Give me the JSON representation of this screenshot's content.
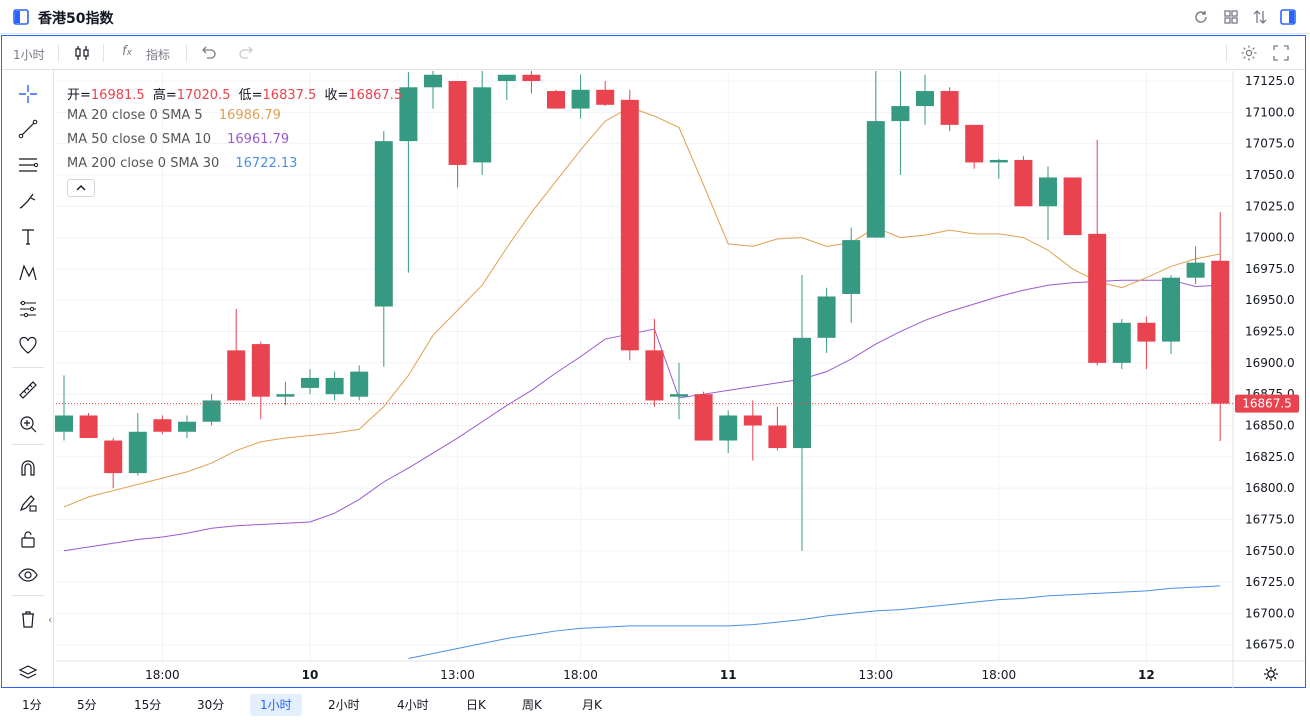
{
  "app": {
    "title": "香港50指数"
  },
  "toolbar": {
    "interval_label": "1小时",
    "indicators_label": "指标"
  },
  "legend": {
    "ohlc": [
      {
        "label": "开=",
        "value": "16981.5"
      },
      {
        "label": "高=",
        "value": "17020.5"
      },
      {
        "label": "低=",
        "value": "16837.5"
      },
      {
        "label": "收=",
        "value": "16867.5"
      }
    ],
    "ma": [
      {
        "label": "MA 20 close 0 SMA 5",
        "value": "16986.79",
        "color": "#e0a050"
      },
      {
        "label": "MA 50 close 0 SMA 10",
        "value": "16961.79",
        "color": "#9b59d0"
      },
      {
        "label": "MA 200 close 0 SMA 30",
        "value": "16722.13",
        "color": "#4a90e2"
      }
    ],
    "ohlc_value_color": "#e8434f"
  },
  "price_label": "16867.5",
  "timeframes": [
    "1分",
    "5分",
    "15分",
    "30分",
    "1小时",
    "2小时",
    "4小时",
    "日K",
    "周K",
    "月K"
  ],
  "active_timeframe": "1小时",
  "colors": {
    "up": "#369a82",
    "down": "#e8434f",
    "accent": "#2962ff"
  },
  "chart_data": {
    "type": "candlestick",
    "y_ticks": [
      17125,
      17100,
      17075,
      17050,
      17025,
      17000,
      16975,
      16950,
      16925,
      16900,
      16875,
      16850,
      16825,
      16800,
      16775,
      16750,
      16725,
      16700,
      16675
    ],
    "y_tick_labels": [
      "17125.0",
      "17100.0",
      "17075.0",
      "17050.0",
      "17025.0",
      "17000.0",
      "16975.0",
      "16950.0",
      "16925.0",
      "16900.0",
      "16875.0",
      "16850.0",
      "16825.0",
      "16800.0",
      "16775.0",
      "16750.0",
      "16725.0",
      "16700.0",
      "16675.0"
    ],
    "ylim": [
      16662,
      17133
    ],
    "x_labels": [
      {
        "index": 4,
        "label": "18:00",
        "bold": false
      },
      {
        "index": 10,
        "label": "10",
        "bold": true
      },
      {
        "index": 16,
        "label": "13:00",
        "bold": false
      },
      {
        "index": 21,
        "label": "18:00",
        "bold": false
      },
      {
        "index": 27,
        "label": "11",
        "bold": true
      },
      {
        "index": 33,
        "label": "13:00",
        "bold": false
      },
      {
        "index": 38,
        "label": "18:00",
        "bold": false
      },
      {
        "index": 44,
        "label": "12",
        "bold": true
      }
    ],
    "candles": [
      {
        "o": 16845,
        "h": 16890,
        "l": 16838,
        "c": 16858
      },
      {
        "o": 16858,
        "h": 16860,
        "l": 16840,
        "c": 16840
      },
      {
        "o": 16838,
        "h": 16840,
        "l": 16800,
        "c": 16812
      },
      {
        "o": 16812,
        "h": 16860,
        "l": 16810,
        "c": 16845
      },
      {
        "o": 16855,
        "h": 16858,
        "l": 16843,
        "c": 16845
      },
      {
        "o": 16845,
        "h": 16858,
        "l": 16840,
        "c": 16853
      },
      {
        "o": 16853,
        "h": 16875,
        "l": 16850,
        "c": 16870
      },
      {
        "o": 16910,
        "h": 16943,
        "l": 16870,
        "c": 16870
      },
      {
        "o": 16915,
        "h": 16917,
        "l": 16855,
        "c": 16873
      },
      {
        "o": 16873,
        "h": 16885,
        "l": 16866,
        "c": 16875
      },
      {
        "o": 16880,
        "h": 16895,
        "l": 16875,
        "c": 16888
      },
      {
        "o": 16875,
        "h": 16893,
        "l": 16870,
        "c": 16888
      },
      {
        "o": 16873,
        "h": 16898,
        "l": 16870,
        "c": 16893
      },
      {
        "o": 16945,
        "h": 17085,
        "l": 16897,
        "c": 17077
      },
      {
        "o": 17077,
        "h": 17132,
        "l": 16972,
        "c": 17120
      },
      {
        "o": 17120,
        "h": 17140,
        "l": 17103,
        "c": 17130
      },
      {
        "o": 17125,
        "h": 17125,
        "l": 17040,
        "c": 17058
      },
      {
        "o": 17060,
        "h": 17140,
        "l": 17050,
        "c": 17120
      },
      {
        "o": 17125,
        "h": 17130,
        "l": 17110,
        "c": 17130
      },
      {
        "o": 17130,
        "h": 17140,
        "l": 17115,
        "c": 17125
      },
      {
        "o": 17117,
        "h": 17118,
        "l": 17103,
        "c": 17103
      },
      {
        "o": 17103,
        "h": 17130,
        "l": 17095,
        "c": 17118
      },
      {
        "o": 17118,
        "h": 17125,
        "l": 17105,
        "c": 17106
      },
      {
        "o": 17110,
        "h": 17118,
        "l": 16902,
        "c": 16910
      },
      {
        "o": 16910,
        "h": 16935,
        "l": 16865,
        "c": 16870
      },
      {
        "o": 16873,
        "h": 16900,
        "l": 16855,
        "c": 16875
      },
      {
        "o": 16875,
        "h": 16877,
        "l": 16840,
        "c": 16838
      },
      {
        "o": 16838,
        "h": 16862,
        "l": 16828,
        "c": 16858
      },
      {
        "o": 16858,
        "h": 16870,
        "l": 16822,
        "c": 16850
      },
      {
        "o": 16850,
        "h": 16865,
        "l": 16830,
        "c": 16832
      },
      {
        "o": 16832,
        "h": 16970,
        "l": 16750,
        "c": 16920
      },
      {
        "o": 16920,
        "h": 16960,
        "l": 16908,
        "c": 16953
      },
      {
        "o": 16955,
        "h": 17008,
        "l": 16932,
        "c": 16998
      },
      {
        "o": 17000,
        "h": 17133,
        "l": 17000,
        "c": 17093
      },
      {
        "o": 17093,
        "h": 17133,
        "l": 17050,
        "c": 17105
      },
      {
        "o": 17105,
        "h": 17130,
        "l": 17090,
        "c": 17117
      },
      {
        "o": 17117,
        "h": 17120,
        "l": 17085,
        "c": 17090
      },
      {
        "o": 17090,
        "h": 17090,
        "l": 17055,
        "c": 17060
      },
      {
        "o": 17060,
        "h": 17063,
        "l": 17047,
        "c": 17062
      },
      {
        "o": 17062,
        "h": 17065,
        "l": 17025,
        "c": 17025
      },
      {
        "o": 17025,
        "h": 17057,
        "l": 16998,
        "c": 17048
      },
      {
        "o": 17048,
        "h": 17048,
        "l": 17002,
        "c": 17002
      },
      {
        "o": 17003,
        "h": 17078,
        "l": 16898,
        "c": 16900
      },
      {
        "o": 16900,
        "h": 16935,
        "l": 16895,
        "c": 16932
      },
      {
        "o": 16932,
        "h": 16937,
        "l": 16895,
        "c": 16917
      },
      {
        "o": 16917,
        "h": 16970,
        "l": 16907,
        "c": 16968
      },
      {
        "o": 16968,
        "h": 16993,
        "l": 16963,
        "c": 16980
      },
      {
        "o": 16981.5,
        "h": 17020.5,
        "l": 16837.5,
        "c": 16867.5
      }
    ],
    "ma5": [
      16785,
      16793,
      16798,
      16803,
      16808,
      16813,
      16820,
      16830,
      16837,
      16840,
      16842,
      16844,
      16847,
      16865,
      16890,
      16922,
      16942,
      16962,
      16992,
      17020,
      17045,
      17070,
      17093,
      17104,
      17097,
      17088,
      17042,
      16995,
      16993,
      16999,
      17000,
      16993,
      16996,
      17008,
      17000,
      17002,
      17006,
      17003,
      17003,
      17000,
      16990,
      16975,
      16965,
      16960,
      16968,
      16977,
      16983,
      16987
    ],
    "ma10": [
      16750,
      16753,
      16756,
      16759,
      16761,
      16764,
      16768,
      16770,
      16771,
      16772,
      16773,
      16780,
      16791,
      16805,
      16816,
      16828,
      16840,
      16853,
      16866,
      16878,
      16892,
      16905,
      16919,
      16923,
      16927,
      16872,
      16875,
      16878,
      16881,
      16884,
      16887,
      16893,
      16903,
      16915,
      16925,
      16934,
      16941,
      16947,
      16953,
      16958,
      16962,
      16964,
      16965,
      16966,
      16966,
      16966,
      16961,
      16962
    ],
    "ma30": [
      16625,
      16627,
      16629,
      16631,
      16633,
      16635,
      16638,
      16640,
      16643,
      16645,
      16648,
      16650,
      16655,
      16660,
      16664,
      16668,
      16672,
      16676,
      16680,
      16683,
      16686,
      16688,
      16689,
      16690,
      16690,
      16690,
      16690,
      16690,
      16691,
      16693,
      16695,
      16698,
      16700,
      16702,
      16703,
      16705,
      16707,
      16709,
      16711,
      16712,
      16714,
      16715,
      16716,
      16717,
      16718,
      16720,
      16721,
      16722
    ]
  }
}
